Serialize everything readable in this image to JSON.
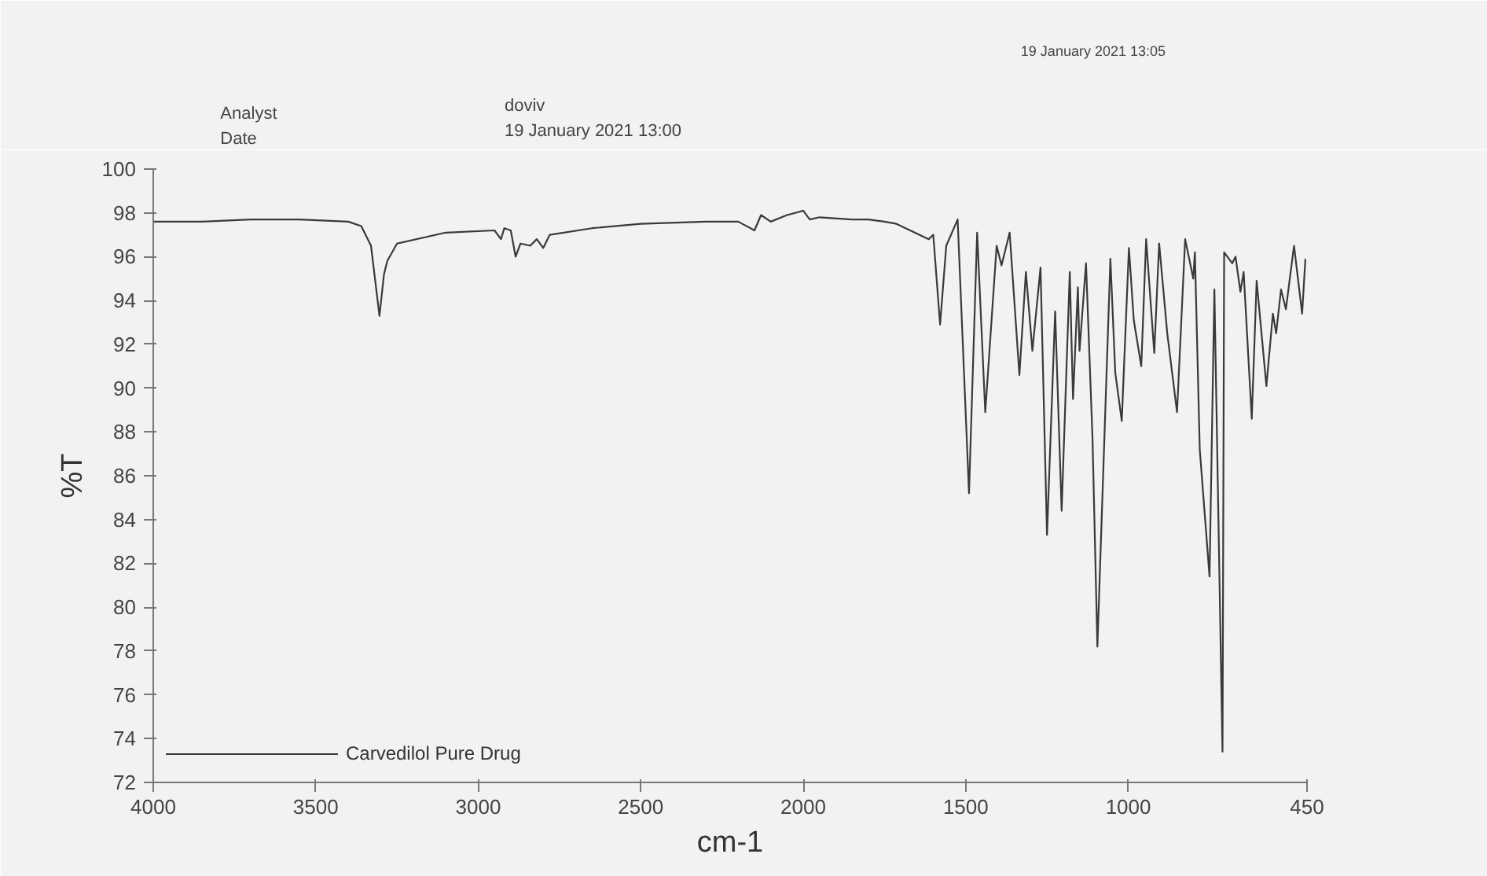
{
  "chart_data": {
    "type": "line",
    "xlabel": "cm-1",
    "ylabel": "%T",
    "annotations": [
      "Analyst",
      "Date",
      "doviv",
      "19 January 2021 13:00",
      "19 January 2021 13:05"
    ],
    "xlim": [
      4000,
      450
    ],
    "xticks": [
      4000,
      3500,
      3000,
      2500,
      2000,
      1500,
      1000,
      450
    ],
    "ylim": [
      72,
      100
    ],
    "yticks": [
      72,
      74,
      76,
      78,
      80,
      82,
      84,
      86,
      88,
      90,
      92,
      94,
      96,
      98,
      100
    ],
    "grid": false,
    "legend": "bottom left",
    "marker": "none",
    "line_style": "solid",
    "series": [
      {
        "name": "Carvedilol Pure Drug",
        "color": "#3a3a3a",
        "x": [
          4000,
          3850,
          3700,
          3550,
          3400,
          3360,
          3330,
          3304,
          3290,
          3280,
          3250,
          3100,
          2950,
          2930,
          2920,
          2900,
          2885,
          2870,
          2840,
          2820,
          2800,
          2780,
          2650,
          2500,
          2300,
          2200,
          2150,
          2130,
          2100,
          2050,
          2000,
          1980,
          1950,
          1850,
          1800,
          1750,
          1713,
          1614,
          1600,
          1579,
          1560,
          1525,
          1490,
          1465,
          1440,
          1405,
          1390,
          1365,
          1335,
          1315,
          1295,
          1270,
          1250,
          1225,
          1205,
          1180,
          1170,
          1155,
          1150,
          1130,
          1110,
          1095,
          1055,
          1040,
          1020,
          998,
          983,
          960,
          945,
          920,
          905,
          880,
          850,
          825,
          800,
          795,
          780,
          750,
          735,
          710,
          705,
          680,
          670,
          655,
          645,
          620,
          605,
          575,
          555,
          545,
          530,
          515,
          490,
          465,
          455
        ],
        "values": [
          97.6,
          97.6,
          97.7,
          97.7,
          97.6,
          97.4,
          96.5,
          93.3,
          95.2,
          95.8,
          96.6,
          97.1,
          97.2,
          96.8,
          97.3,
          97.2,
          96.0,
          96.6,
          96.5,
          96.8,
          96.4,
          97.0,
          97.3,
          97.5,
          97.6,
          97.6,
          97.2,
          97.9,
          97.6,
          97.9,
          98.1,
          97.7,
          97.8,
          97.7,
          97.7,
          97.6,
          97.5,
          96.8,
          97.0,
          92.9,
          96.5,
          97.7,
          85.2,
          97.1,
          88.9,
          96.5,
          95.6,
          97.1,
          90.6,
          95.3,
          91.7,
          95.5,
          83.3,
          93.5,
          84.4,
          95.3,
          89.5,
          94.6,
          91.7,
          95.7,
          87.7,
          78.2,
          95.9,
          90.7,
          88.5,
          96.4,
          93.1,
          91.0,
          96.8,
          91.6,
          96.6,
          92.5,
          88.9,
          96.8,
          95.0,
          96.2,
          87.2,
          81.4,
          94.5,
          73.4,
          96.2,
          95.7,
          96.0,
          94.4,
          95.3,
          88.6,
          94.9,
          90.1,
          93.4,
          92.5,
          94.5,
          93.6,
          96.5,
          93.4,
          95.9
        ]
      }
    ]
  }
}
